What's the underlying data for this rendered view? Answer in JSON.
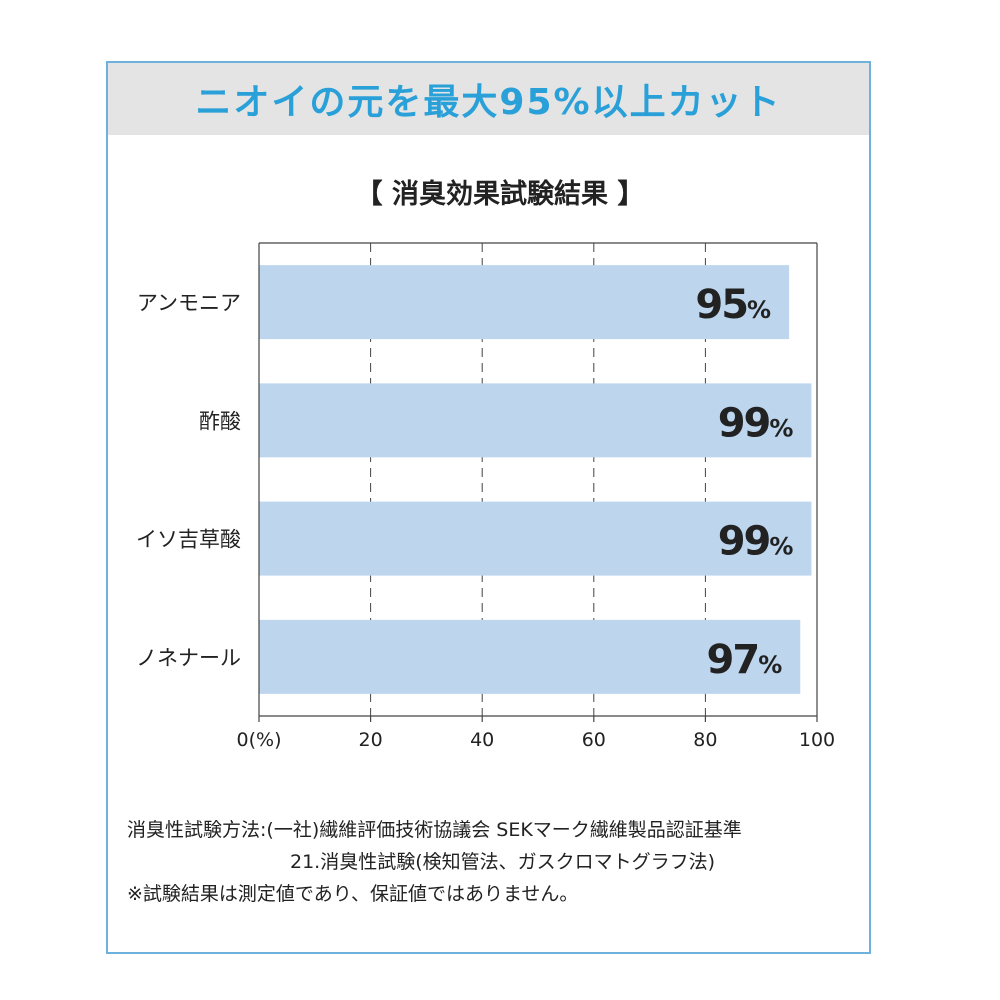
{
  "headline": "ニオイの元を最大95%以上カット",
  "chart_data": {
    "type": "bar",
    "orientation": "horizontal",
    "title": "【 消臭効果試験結果 】",
    "categories": [
      "アンモニア",
      "酢酸",
      "イソ吉草酸",
      "ノネナール"
    ],
    "values": [
      95,
      99,
      99,
      97
    ],
    "value_labels": [
      "95%",
      "99%",
      "99%",
      "97%"
    ],
    "xlim": [
      0,
      100
    ],
    "x_ticks": [
      0,
      20,
      40,
      60,
      80,
      100
    ],
    "x_tick_labels": [
      "0(%)",
      "20",
      "40",
      "60",
      "80",
      "100"
    ],
    "grid": true,
    "grid_style": "dashed-vertical",
    "bar_color": "#bdd6ee",
    "label_color": "#222222"
  },
  "notes": {
    "line1": "消臭性試験方法:(一社)繊維評価技術協議会 SEKマーク繊維製品認証基準",
    "line2": "21.消臭性試験(検知管法、ガスクロマトグラフ法)",
    "line3": "※試験結果は測定値であり、保証値ではありません。"
  },
  "colors": {
    "frame_border": "#6fb1dd",
    "headline_text": "#2aa0d8",
    "headline_bg": "#e4e4e4"
  }
}
